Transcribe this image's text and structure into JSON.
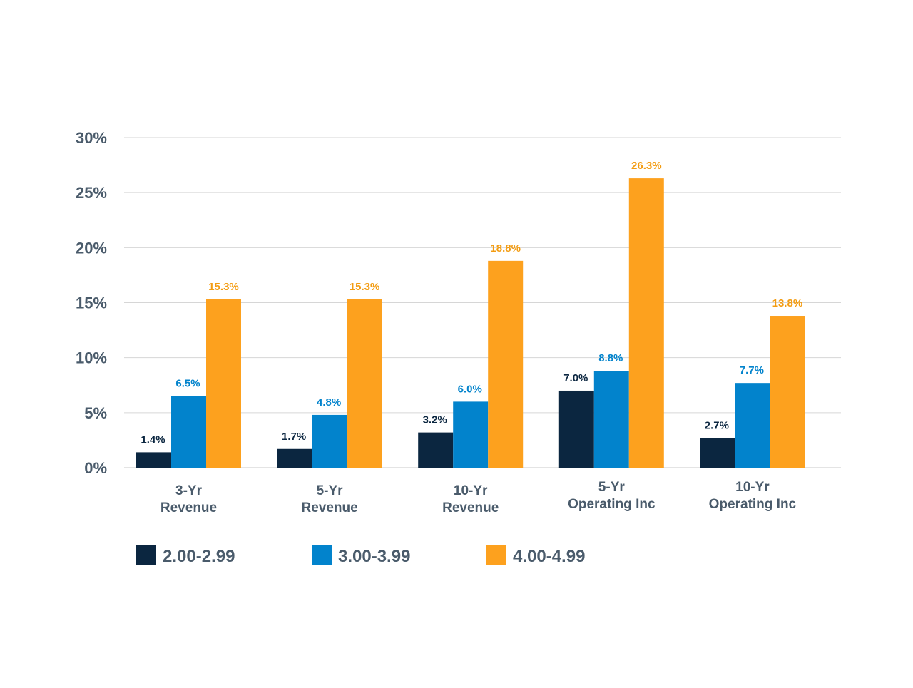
{
  "chart_data": {
    "type": "bar",
    "categories": [
      [
        "3-Yr",
        "Revenue"
      ],
      [
        "5-Yr",
        "Revenue"
      ],
      [
        "10-Yr",
        "Revenue"
      ],
      [
        "5-Yr",
        "Operating Inc"
      ],
      [
        "10-Yr",
        "Operating Inc"
      ]
    ],
    "series": [
      {
        "name": "2.00-2.99",
        "color": "#0b2640",
        "label_color": "#0b2640",
        "values": [
          1.4,
          1.7,
          3.2,
          7.0,
          2.7
        ],
        "labels": [
          "1.4%",
          "1.7%",
          "3.2%",
          "7.0%",
          "2.7%"
        ]
      },
      {
        "name": "3.00-3.99",
        "color": "#0283cc",
        "label_color": "#0283cc",
        "values": [
          6.5,
          4.8,
          6.0,
          8.8,
          7.7
        ],
        "labels": [
          "6.5%",
          "4.8%",
          "6.0%",
          "8.8%",
          "7.7%"
        ]
      },
      {
        "name": "4.00-4.99",
        "color": "#fda11e",
        "label_color": "#f39c12",
        "values": [
          15.3,
          15.3,
          18.8,
          26.3,
          13.8
        ],
        "labels": [
          "15.3%",
          "15.3%",
          "18.8%",
          "26.3%",
          "13.8%"
        ]
      }
    ],
    "yticks": [
      0,
      5,
      10,
      15,
      20,
      25,
      30
    ],
    "ytick_labels": [
      "0%",
      "5%",
      "10%",
      "15%",
      "20%",
      "25%",
      "30%"
    ],
    "ylim": [
      0,
      30
    ],
    "grid": true,
    "legend_position": "bottom-left",
    "title": "",
    "xlabel": "",
    "ylabel": ""
  }
}
